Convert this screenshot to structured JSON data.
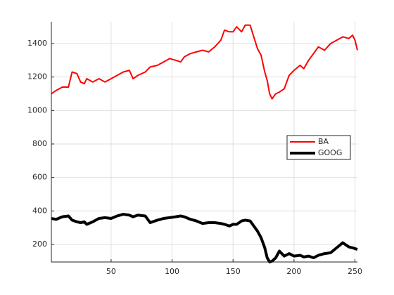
{
  "chart_data": {
    "type": "line",
    "x": [
      1,
      5,
      10,
      15,
      18,
      22,
      25,
      28,
      30,
      35,
      40,
      45,
      50,
      55,
      60,
      65,
      68,
      72,
      78,
      82,
      88,
      93,
      98,
      103,
      107,
      110,
      115,
      120,
      125,
      130,
      135,
      140,
      143,
      147,
      150,
      153,
      157,
      160,
      164,
      167,
      170,
      173,
      176,
      178,
      180,
      182,
      185,
      188,
      192,
      196,
      200,
      205,
      208,
      212,
      216,
      220,
      225,
      230,
      235,
      240,
      245,
      248,
      250,
      252
    ],
    "series": [
      {
        "name": "BA",
        "color": "#ff0000",
        "line_width": 2,
        "values": [
          1100,
          1120,
          1140,
          1140,
          1230,
          1220,
          1170,
          1160,
          1190,
          1170,
          1190,
          1170,
          1190,
          1210,
          1230,
          1240,
          1190,
          1210,
          1230,
          1260,
          1270,
          1290,
          1310,
          1300,
          1290,
          1320,
          1340,
          1350,
          1360,
          1350,
          1380,
          1420,
          1480,
          1470,
          1470,
          1500,
          1470,
          1510,
          1510,
          1440,
          1370,
          1330,
          1230,
          1180,
          1100,
          1070,
          1100,
          1110,
          1130,
          1210,
          1240,
          1270,
          1250,
          1300,
          1340,
          1380,
          1360,
          1400,
          1420,
          1440,
          1430,
          1450,
          1420,
          1360
        ]
      },
      {
        "name": "GOOG",
        "color": "#000000",
        "line_width": 4,
        "values": [
          355,
          350,
          365,
          370,
          345,
          335,
          330,
          335,
          320,
          335,
          355,
          360,
          355,
          370,
          380,
          375,
          365,
          375,
          370,
          330,
          345,
          355,
          360,
          365,
          370,
          365,
          350,
          340,
          325,
          330,
          330,
          325,
          320,
          310,
          320,
          320,
          340,
          345,
          340,
          310,
          280,
          240,
          180,
          120,
          95,
          100,
          120,
          160,
          130,
          145,
          130,
          135,
          125,
          130,
          120,
          135,
          145,
          150,
          180,
          210,
          185,
          180,
          175,
          170
        ]
      }
    ],
    "xlim": [
      1,
      252
    ],
    "ylim": [
      95,
      1530
    ],
    "xticks": [
      50,
      100,
      150,
      200,
      250
    ],
    "yticks": [
      200,
      400,
      600,
      800,
      1000,
      1200,
      1400
    ],
    "grid": true,
    "legend": "east"
  }
}
